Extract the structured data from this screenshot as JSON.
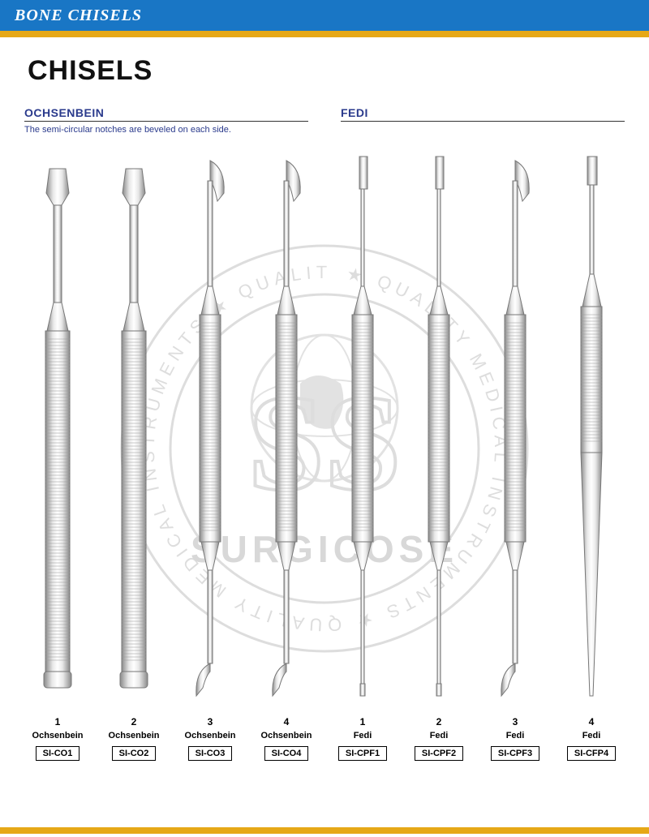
{
  "header": {
    "title": "BONE CHISELS"
  },
  "page": {
    "title": "CHISELS"
  },
  "watermark": {
    "brand": "SURGICOSE",
    "ring_text": "QUALITY MEDICAL INSTRUMENTS",
    "stroke": "#888888",
    "fill": "#999999"
  },
  "colors": {
    "header_bg": "#1976c5",
    "gold": "#e6a817",
    "group_title": "#2a3a8c",
    "steel_light": "#e8e8e8",
    "steel_mid": "#bfbfbf",
    "steel_dark": "#8a8a8a"
  },
  "groups": [
    {
      "title": "OCHSENBEIN",
      "description": "The semi-circular notches are beveled on each side.",
      "items": [
        {
          "num": "1",
          "name": "Ochsenbein",
          "code": "SI-CO1",
          "shape": "ochs-wide"
        },
        {
          "num": "2",
          "name": "Ochsenbein",
          "code": "SI-CO2",
          "shape": "ochs-wide"
        },
        {
          "num": "3",
          "name": "Ochsenbein",
          "code": "SI-CO3",
          "shape": "double-curve"
        },
        {
          "num": "4",
          "name": "Ochsenbein",
          "code": "SI-CO4",
          "shape": "double-curve"
        }
      ]
    },
    {
      "title": "FEDI",
      "description": "",
      "items": [
        {
          "num": "1",
          "name": "Fedi",
          "code": "SI-CPF1",
          "shape": "double-straight"
        },
        {
          "num": "2",
          "name": "Fedi",
          "code": "SI-CPF2",
          "shape": "double-straight"
        },
        {
          "num": "3",
          "name": "Fedi",
          "code": "SI-CPF3",
          "shape": "double-curve"
        },
        {
          "num": "4",
          "name": "Fedi",
          "code": "SI-CFP4",
          "shape": "single-taper"
        }
      ]
    }
  ]
}
